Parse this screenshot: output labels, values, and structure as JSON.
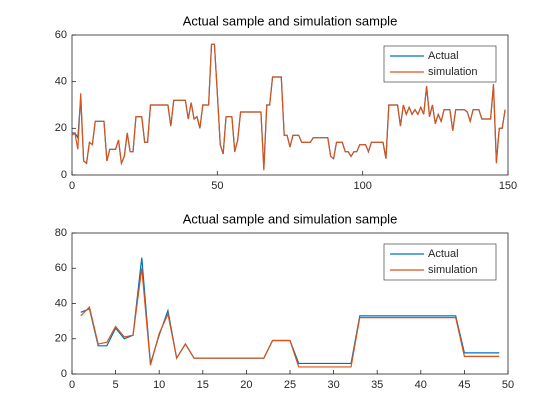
{
  "chart_data": [
    {
      "type": "line",
      "title": "Actual sample and simulation sample",
      "x": [
        0,
        1,
        2,
        3,
        4,
        5,
        6,
        7,
        8,
        9,
        10,
        11,
        12,
        13,
        14,
        15,
        16,
        17,
        18,
        19,
        20,
        21,
        22,
        23,
        24,
        25,
        26,
        27,
        28,
        29,
        30,
        31,
        32,
        33,
        34,
        35,
        36,
        37,
        38,
        39,
        40,
        41,
        42,
        43,
        44,
        45,
        46,
        47,
        48,
        49,
        50,
        51,
        52,
        53,
        54,
        55,
        56,
        57,
        58,
        59,
        60,
        61,
        62,
        63,
        64,
        65,
        66,
        67,
        68,
        69,
        70,
        71,
        72,
        73,
        74,
        75,
        76,
        77,
        78,
        79,
        80,
        81,
        82,
        83,
        84,
        85,
        86,
        87,
        88,
        89,
        90,
        91,
        92,
        93,
        94,
        95,
        96,
        97,
        98,
        99,
        100,
        101,
        102,
        103,
        104,
        105,
        106,
        107,
        108,
        109,
        110,
        111,
        112,
        113,
        114,
        115,
        116,
        117,
        118,
        119,
        120,
        121,
        122,
        123,
        124,
        125,
        126,
        127,
        128,
        129,
        130,
        131,
        132,
        133,
        134,
        135,
        136,
        137,
        138,
        139,
        140,
        141,
        142,
        143,
        144,
        145,
        146,
        147,
        148,
        149
      ],
      "series": [
        {
          "name": "Actual",
          "color": "#0072bd",
          "values": [
            18,
            18,
            16,
            33,
            6,
            5,
            14,
            13,
            23,
            23,
            23,
            23,
            6,
            11,
            11,
            11,
            15,
            5,
            8,
            18,
            10,
            10,
            25,
            25,
            25,
            14,
            14,
            30,
            30,
            30,
            30,
            30,
            30,
            30,
            21,
            32,
            32,
            32,
            32,
            32,
            24,
            31,
            24,
            25,
            20,
            30,
            30,
            30,
            56,
            56,
            35,
            13,
            9,
            25,
            25,
            25,
            10,
            15,
            27,
            27,
            27,
            27,
            27,
            27,
            27,
            27,
            3,
            30,
            30,
            42,
            42,
            42,
            42,
            17,
            17,
            12,
            17,
            17,
            17,
            14,
            14,
            14,
            14,
            16,
            16,
            16,
            16,
            16,
            16,
            8,
            7,
            14,
            14,
            14,
            10,
            10,
            8,
            10,
            10,
            13,
            13,
            13,
            10,
            14,
            14,
            14,
            14,
            14,
            7,
            30,
            30,
            30,
            30,
            21,
            30,
            26,
            29,
            26,
            28,
            26,
            29,
            26,
            38,
            25,
            30,
            22,
            26,
            23,
            28,
            28,
            28,
            19,
            28,
            28,
            28,
            28,
            27,
            23,
            28,
            28,
            28,
            24,
            24,
            24,
            24,
            38,
            6,
            20,
            20,
            28
          ]
        },
        {
          "name": "simulation",
          "color": "#d95319",
          "values": [
            17,
            18,
            11,
            35,
            6,
            5,
            14,
            13,
            23,
            23,
            23,
            23,
            6,
            11,
            11,
            11,
            15,
            5,
            8,
            18,
            10,
            10,
            25,
            25,
            25,
            14,
            14,
            30,
            30,
            30,
            30,
            30,
            30,
            30,
            21,
            32,
            32,
            32,
            32,
            32,
            24,
            31,
            24,
            25,
            20,
            30,
            30,
            30,
            56,
            56,
            35,
            13,
            9,
            25,
            25,
            25,
            10,
            15,
            27,
            27,
            27,
            27,
            27,
            27,
            27,
            27,
            2,
            30,
            30,
            42,
            42,
            42,
            42,
            17,
            17,
            12,
            17,
            17,
            17,
            14,
            14,
            14,
            14,
            16,
            16,
            16,
            16,
            16,
            16,
            8,
            7,
            14,
            14,
            14,
            10,
            10,
            8,
            10,
            10,
            13,
            13,
            13,
            10,
            14,
            14,
            14,
            14,
            14,
            7,
            30,
            30,
            30,
            30,
            21,
            30,
            26,
            29,
            26,
            28,
            26,
            29,
            26,
            38,
            25,
            30,
            22,
            26,
            23,
            28,
            28,
            28,
            19,
            28,
            28,
            28,
            28,
            27,
            23,
            28,
            28,
            28,
            24,
            24,
            24,
            24,
            39,
            5,
            20,
            20,
            28
          ]
        }
      ],
      "xlim": [
        0,
        150
      ],
      "xticks": [
        0,
        50,
        100,
        150
      ],
      "ylim": [
        0,
        60
      ],
      "yticks": [
        0,
        20,
        40,
        60
      ],
      "legend": "upper right"
    },
    {
      "type": "line",
      "title": "Actual sample and simulation sample",
      "x": [
        1,
        2,
        3,
        4,
        5,
        6,
        7,
        8,
        9,
        10,
        11,
        12,
        13,
        14,
        15,
        16,
        17,
        18,
        19,
        20,
        21,
        22,
        23,
        24,
        25,
        26,
        27,
        28,
        29,
        30,
        31,
        32,
        33,
        34,
        35,
        36,
        37,
        38,
        39,
        40,
        41,
        42,
        43,
        44,
        45,
        46,
        47,
        48,
        49
      ],
      "series": [
        {
          "name": "Actual",
          "color": "#0072bd",
          "values": [
            35,
            37,
            16,
            16,
            26,
            20,
            22,
            66,
            6,
            22,
            36,
            9,
            17,
            9,
            9,
            9,
            9,
            9,
            9,
            9,
            9,
            9,
            19,
            19,
            19,
            6,
            6,
            6,
            6,
            6,
            6,
            6,
            33,
            33,
            33,
            33,
            33,
            33,
            33,
            33,
            33,
            33,
            33,
            33,
            12,
            12,
            12,
            12,
            12
          ]
        },
        {
          "name": "simulation",
          "color": "#d95319",
          "values": [
            33,
            38,
            17,
            18,
            27,
            21,
            22,
            60,
            5,
            23,
            34,
            9,
            17,
            9,
            9,
            9,
            9,
            9,
            9,
            9,
            9,
            9,
            19,
            19,
            19,
            4,
            4,
            4,
            4,
            4,
            4,
            4,
            32,
            32,
            32,
            32,
            32,
            32,
            32,
            32,
            32,
            32,
            32,
            32,
            10,
            10,
            10,
            10,
            10
          ]
        }
      ],
      "xlim": [
        0,
        50
      ],
      "xticks": [
        0,
        5,
        10,
        15,
        20,
        25,
        30,
        35,
        40,
        45,
        50
      ],
      "ylim": [
        0,
        80
      ],
      "yticks": [
        0,
        20,
        40,
        60,
        80
      ],
      "legend": "upper right"
    }
  ]
}
